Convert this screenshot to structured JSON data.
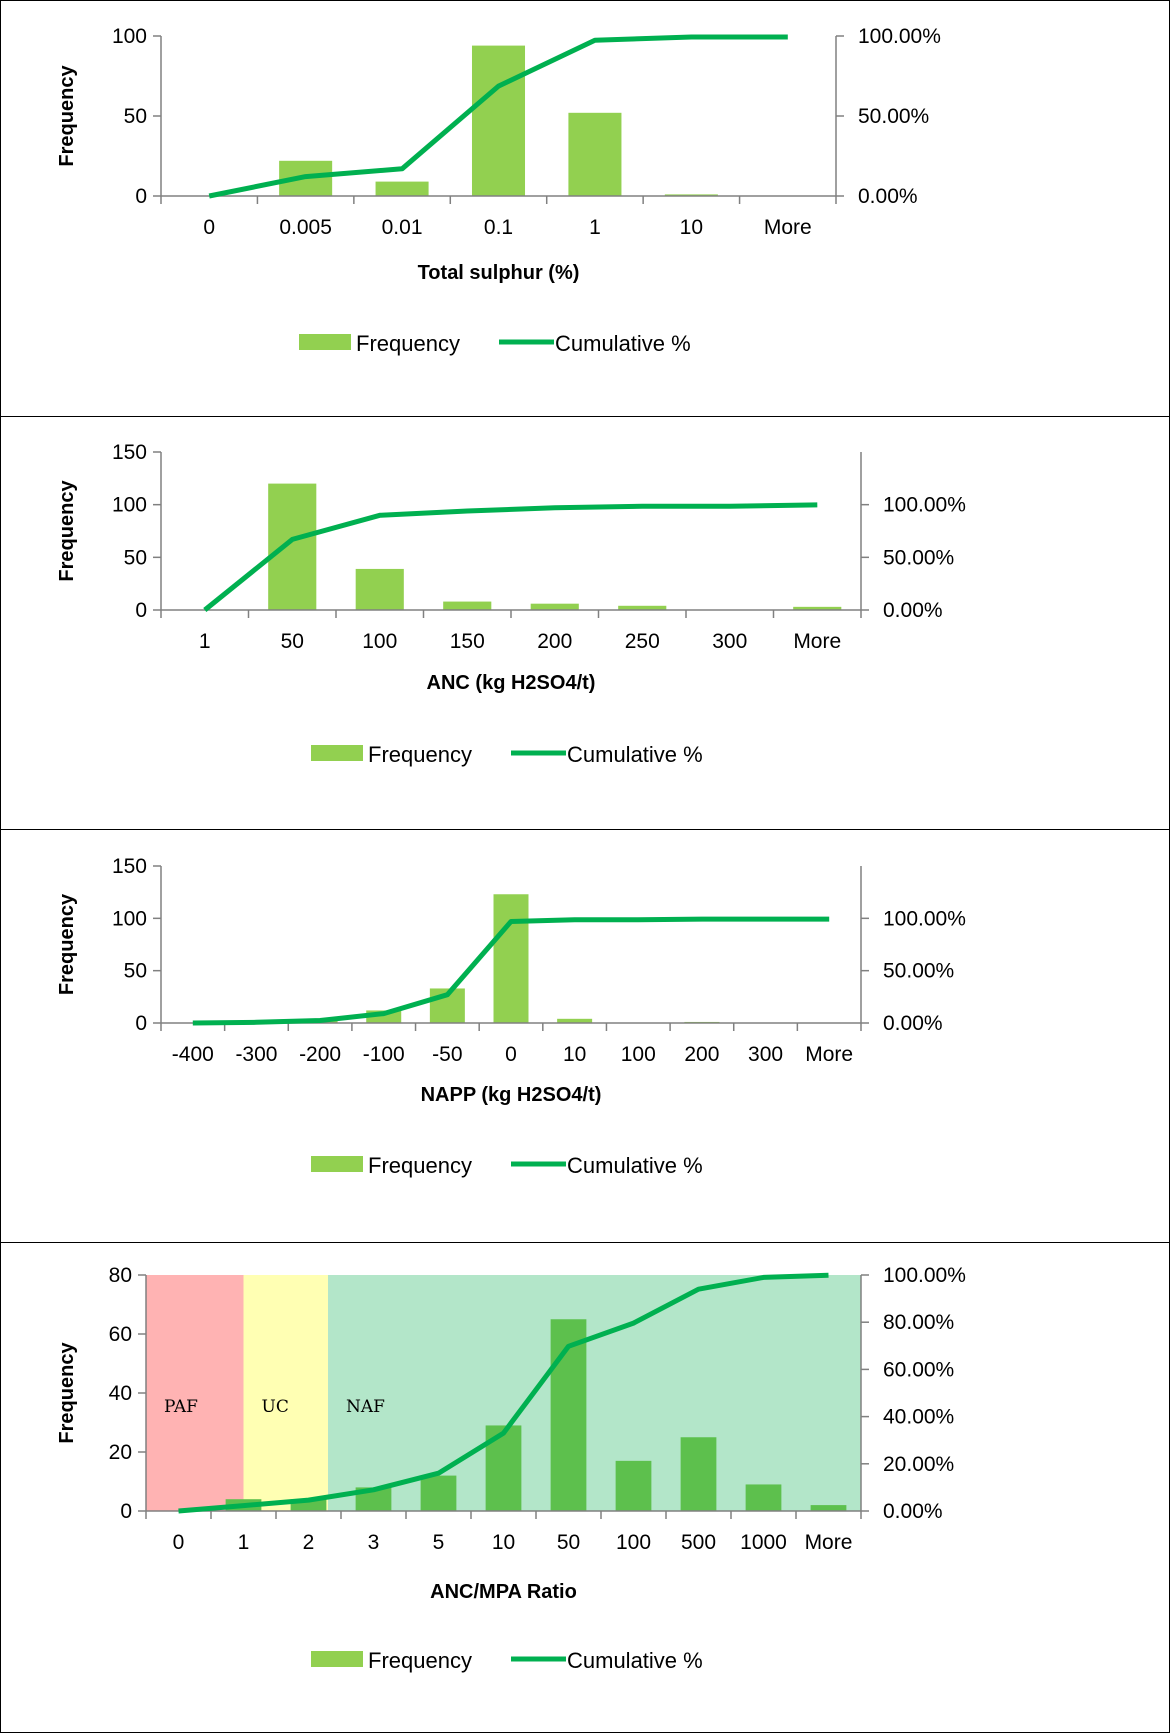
{
  "colors": {
    "bar": "#92d050",
    "bar_ratio": "#5dc04d",
    "line": "#00b050",
    "axis": "#808080",
    "zone_paf": "#ffb3b3",
    "zone_uc": "#ffffb3",
    "zone_naf": "#b3e6c9"
  },
  "chart_data": [
    {
      "type": "bar",
      "categories": [
        "0",
        "0.005",
        "0.01",
        "0.1",
        "1",
        "10",
        "More"
      ],
      "series": [
        {
          "name": "Frequency",
          "type": "bar",
          "axis": "left",
          "values": [
            0,
            22,
            9,
            94,
            52,
            1,
            0
          ]
        },
        {
          "name": "Cumulative %",
          "type": "line",
          "axis": "right",
          "values": [
            0,
            12.1,
            17.0,
            68.7,
            97.3,
            99.4,
            99.4
          ]
        }
      ],
      "xlabel": "Total sulphur (%)",
      "ylabel": "Frequency",
      "ylim": [
        0,
        100
      ],
      "yticks": [
        "0",
        "50",
        "100"
      ],
      "y2lim": [
        0,
        100
      ],
      "y2ticks": [
        "0.00%",
        "50.00%",
        "100.00%"
      ],
      "legend_position": "bottom"
    },
    {
      "type": "bar",
      "categories": [
        "1",
        "50",
        "100",
        "150",
        "200",
        "250",
        "300",
        "More"
      ],
      "series": [
        {
          "name": "Frequency",
          "type": "bar",
          "axis": "left",
          "values": [
            0,
            120,
            39,
            8,
            6,
            4,
            0,
            3
          ]
        },
        {
          "name": "Cumulative %",
          "type": "line",
          "axis": "right",
          "values": [
            0,
            67.0,
            89.9,
            94.0,
            97.0,
            98.5,
            98.5,
            99.8
          ]
        }
      ],
      "xlabel": "ANC (kg H2SO4/t)",
      "ylabel": "Frequency",
      "ylim": [
        0,
        150
      ],
      "yticks": [
        "0",
        "50",
        "100",
        "150"
      ],
      "y2lim": [
        0,
        150
      ],
      "y2ticks": [
        "0.00%",
        "50.00%",
        "100.00%"
      ],
      "legend_position": "bottom"
    },
    {
      "type": "bar",
      "categories": [
        "-400",
        "-300",
        "-200",
        "-100",
        "-50",
        "0",
        "10",
        "100",
        "200",
        "300",
        "More"
      ],
      "series": [
        {
          "name": "Frequency",
          "type": "bar",
          "axis": "left",
          "values": [
            0,
            1,
            3,
            12,
            33,
            123,
            4,
            0,
            1,
            0,
            0
          ]
        },
        {
          "name": "Cumulative %",
          "type": "line",
          "axis": "right",
          "values": [
            0,
            0.7,
            2.4,
            9.0,
            27.0,
            97.0,
            98.6,
            98.6,
            99.3,
            99.3,
            99.3
          ]
        }
      ],
      "xlabel": "NAPP (kg H2SO4/t)",
      "ylabel": "Frequency",
      "ylim": [
        0,
        150
      ],
      "yticks": [
        "0",
        "50",
        "100",
        "150"
      ],
      "y2lim": [
        0,
        150
      ],
      "y2ticks": [
        "0.00%",
        "50.00%",
        "100.00%"
      ],
      "legend_position": "bottom"
    },
    {
      "type": "bar",
      "categories": [
        "0",
        "1",
        "2",
        "3",
        "5",
        "10",
        "50",
        "100",
        "500",
        "1000",
        "More"
      ],
      "series": [
        {
          "name": "Frequency",
          "type": "bar",
          "axis": "left",
          "values": [
            0,
            4,
            4,
            8,
            12,
            29,
            65,
            17,
            25,
            9,
            2
          ]
        },
        {
          "name": "Cumulative %",
          "type": "line",
          "axis": "right",
          "values": [
            0,
            2.3,
            4.6,
            9.0,
            16.0,
            33.0,
            69.8,
            79.6,
            94.0,
            99.0,
            99.9
          ]
        }
      ],
      "zones": [
        {
          "label": "PAF",
          "from": 0,
          "to": 1.5
        },
        {
          "label": "UC",
          "from": 1.5,
          "to": 2.8
        },
        {
          "label": "NAF",
          "from": 2.8,
          "to": 11
        }
      ],
      "xlabel": "ANC/MPA Ratio",
      "ylabel": "Frequency",
      "ylim": [
        0,
        80
      ],
      "yticks": [
        "0",
        "20",
        "40",
        "60",
        "80"
      ],
      "y2lim": [
        0,
        100
      ],
      "y2ticks": [
        "0.00%",
        "20.00%",
        "40.00%",
        "60.00%",
        "80.00%",
        "100.00%"
      ],
      "legend_position": "bottom"
    }
  ]
}
